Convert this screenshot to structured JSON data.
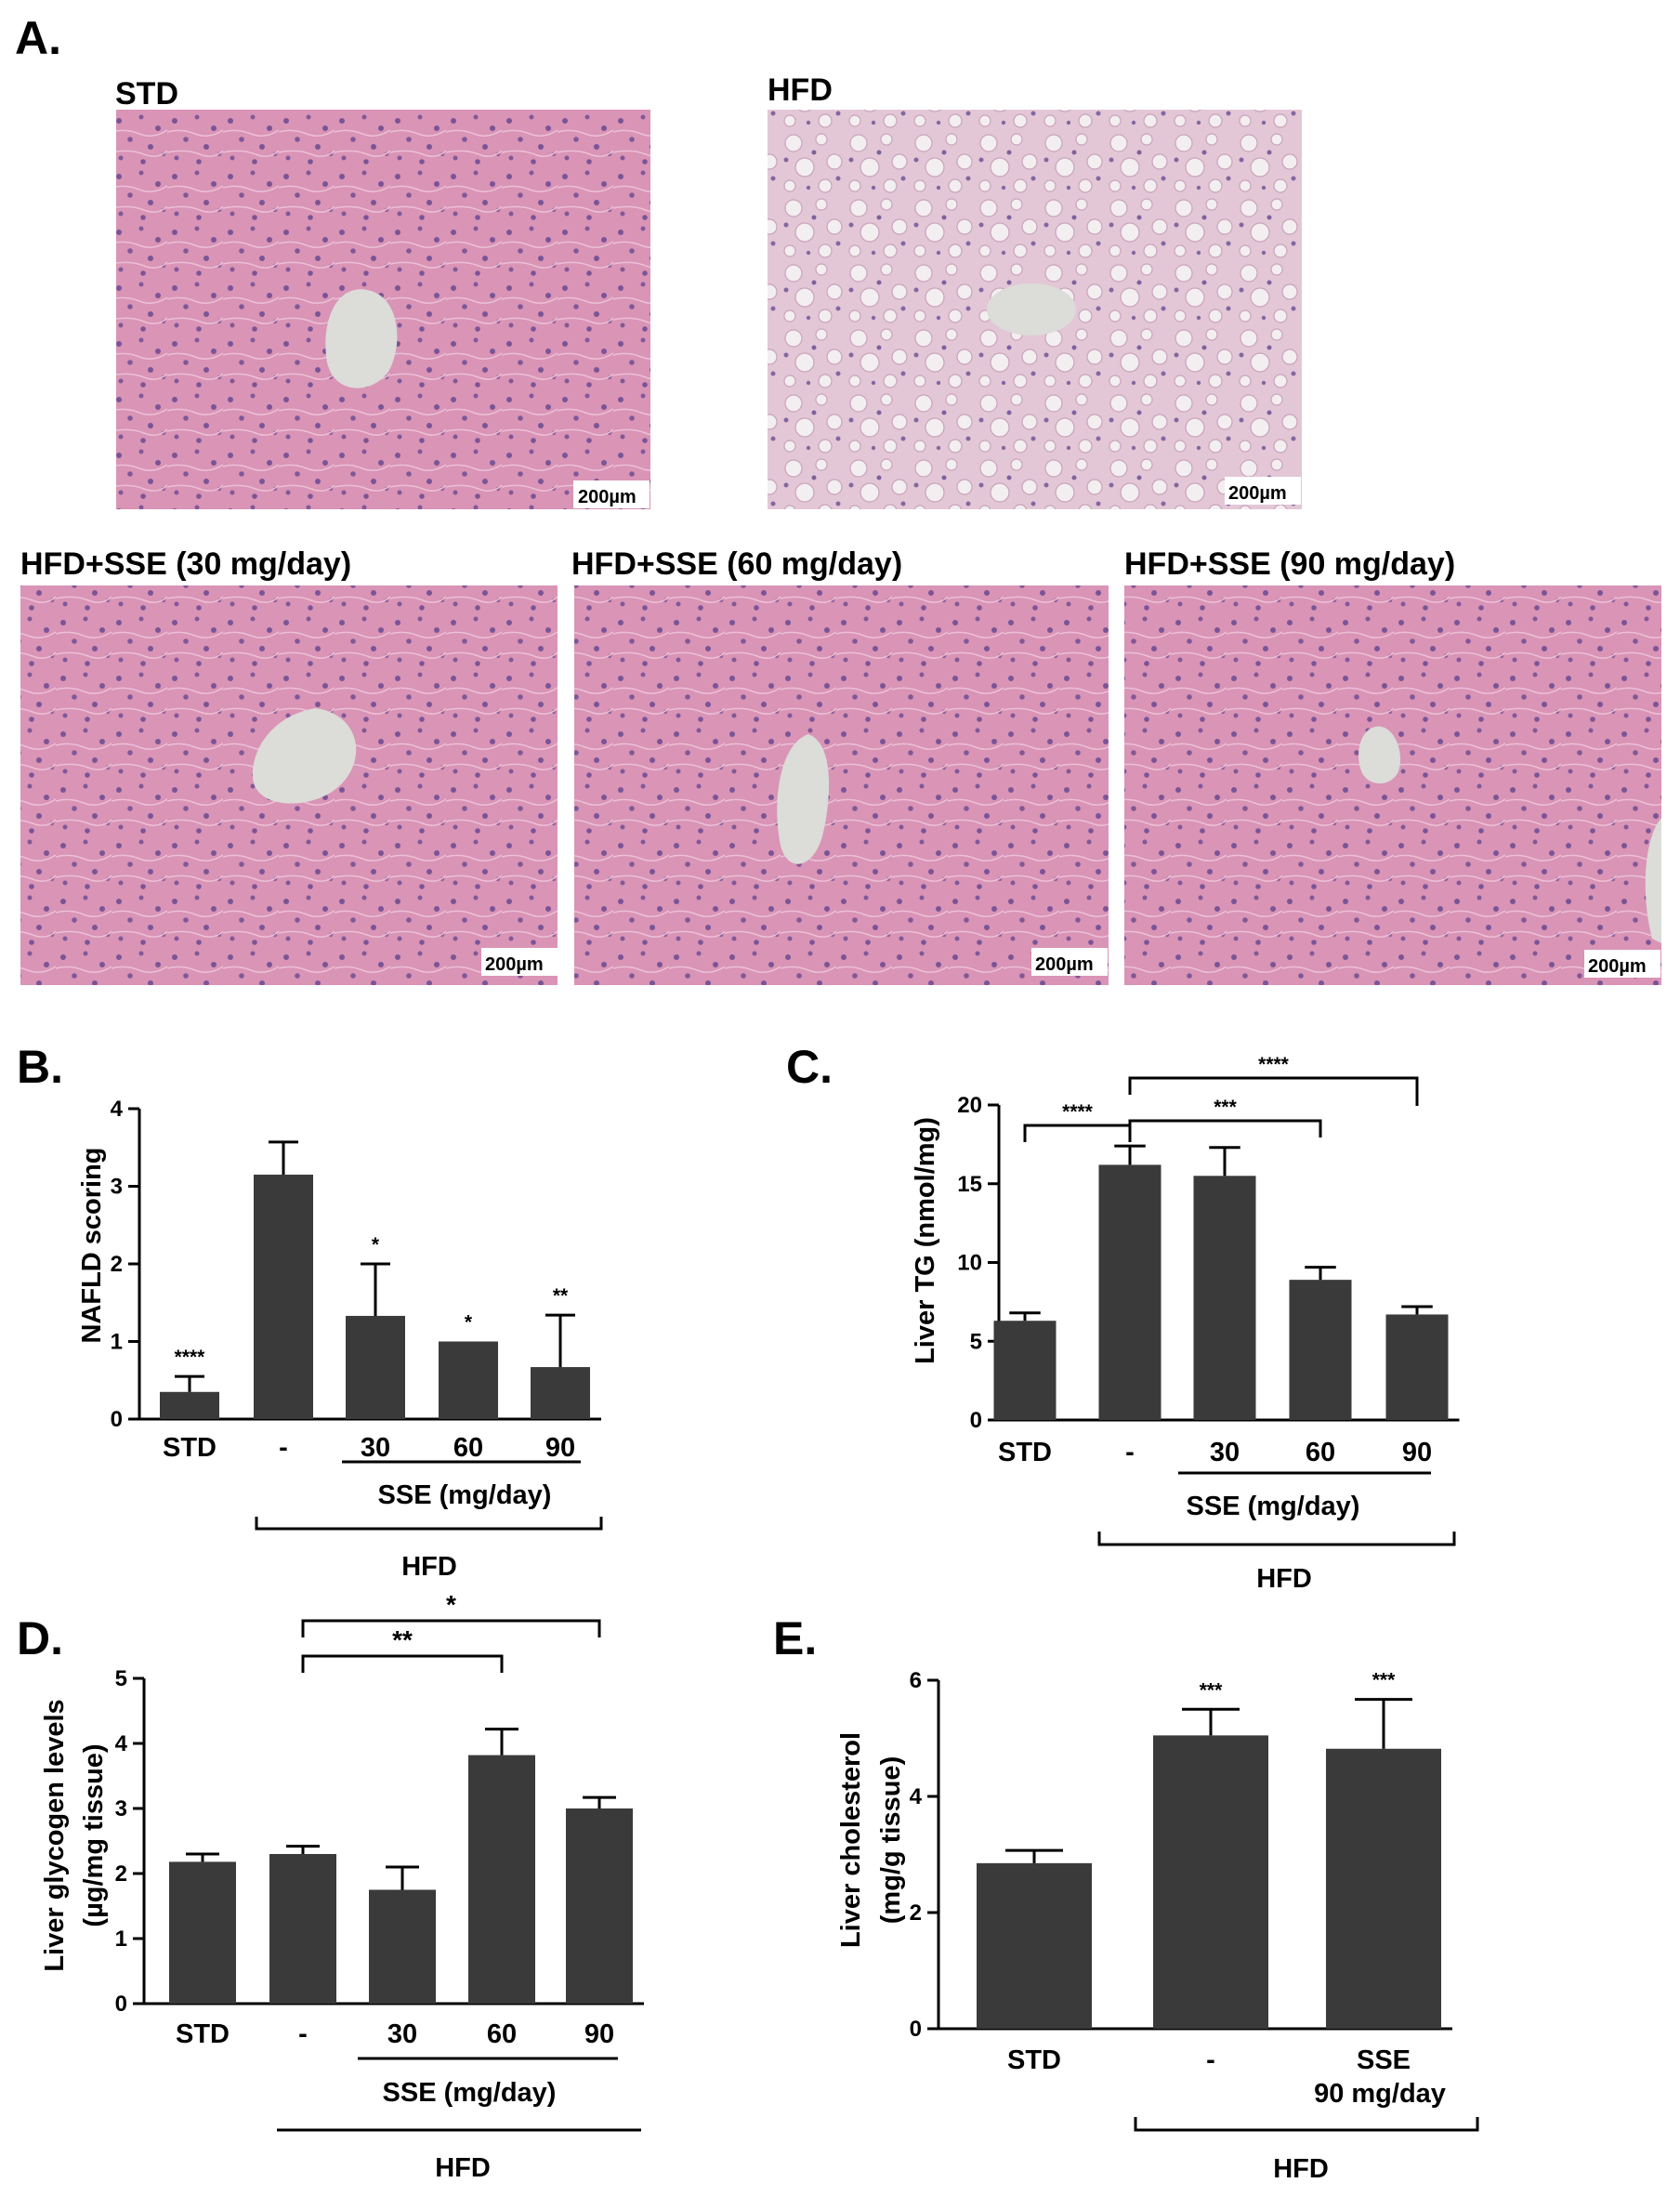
{
  "panelA": {
    "letter": "A.",
    "images": [
      {
        "title": "STD",
        "scalebar": "200µm"
      },
      {
        "title": "HFD",
        "scalebar": "200µm"
      },
      {
        "title": "HFD+SSE (30 mg/day)",
        "scalebar": "200µm"
      },
      {
        "title": "HFD+SSE (60 mg/day)",
        "scalebar": "200µm"
      },
      {
        "title": "HFD+SSE (90 mg/day)",
        "scalebar": "200µm"
      }
    ],
    "tissue_color": "#d994b6",
    "nuclei_color": "#5a3f8a",
    "vessel_color": "#dcdcd8"
  },
  "chart_data": [
    {
      "id": "B",
      "letter": "B.",
      "type": "bar",
      "categories": [
        "STD",
        "-",
        "30",
        "60",
        "90"
      ],
      "values": [
        0.35,
        3.15,
        1.33,
        1.0,
        0.67
      ],
      "errors": [
        0.2,
        0.42,
        0.67,
        0.0,
        0.67
      ],
      "significance": [
        "****",
        "",
        "*",
        "*",
        "**"
      ],
      "ylabel": "NAFLD scoring",
      "ylim": [
        0,
        4
      ],
      "yticks": [
        "0",
        "1",
        "2",
        "3",
        "4"
      ],
      "sse_label": "SSE (mg/day)",
      "hfd_label": "HFD"
    },
    {
      "id": "C",
      "letter": "C.",
      "type": "bar",
      "categories": [
        "STD",
        "-",
        "30",
        "60",
        "90"
      ],
      "values": [
        6.3,
        16.2,
        15.5,
        8.9,
        6.7
      ],
      "errors": [
        0.5,
        1.2,
        1.8,
        0.8,
        0.5
      ],
      "comparisons": [
        {
          "from": "STD",
          "to": "-",
          "label": "****"
        },
        {
          "from": "-",
          "to": "60",
          "label": "***"
        },
        {
          "from": "-",
          "to": "90",
          "label": "****"
        }
      ],
      "ylabel": "Liver TG (nmol/mg)",
      "ylim": [
        0,
        20
      ],
      "yticks": [
        "0",
        "5",
        "10",
        "15",
        "20"
      ],
      "sse_label": "SSE (mg/day)",
      "hfd_label": "HFD"
    },
    {
      "id": "D",
      "letter": "D.",
      "type": "bar",
      "categories": [
        "STD",
        "-",
        "30",
        "60",
        "90"
      ],
      "values": [
        2.18,
        2.3,
        1.75,
        3.82,
        3.0
      ],
      "errors": [
        0.12,
        0.12,
        0.35,
        0.4,
        0.17
      ],
      "comparisons": [
        {
          "from": "-",
          "to": "60",
          "label": "**"
        },
        {
          "from": "-",
          "to": "90",
          "label": "*"
        }
      ],
      "ylabel_line1": "Liver glycogen levels",
      "ylabel_line2": "(µg/mg tissue)",
      "ylim": [
        0,
        5
      ],
      "yticks": [
        "0",
        "1",
        "2",
        "3",
        "4",
        "5"
      ],
      "sse_label": "SSE (mg/day)",
      "hfd_label": "HFD"
    },
    {
      "id": "E",
      "letter": "E.",
      "type": "bar",
      "categories": [
        "STD",
        "-",
        "SSE"
      ],
      "category_sub": "90 mg/day",
      "values": [
        2.85,
        5.05,
        4.82
      ],
      "errors": [
        0.22,
        0.45,
        0.85
      ],
      "significance": [
        "",
        "***",
        "***"
      ],
      "ylabel_line1": "Liver cholesterol",
      "ylabel_line2": "(mg/g tissue)",
      "ylim": [
        0,
        6
      ],
      "yticks": [
        "0",
        "2",
        "4",
        "6"
      ],
      "hfd_label": "HFD"
    }
  ]
}
